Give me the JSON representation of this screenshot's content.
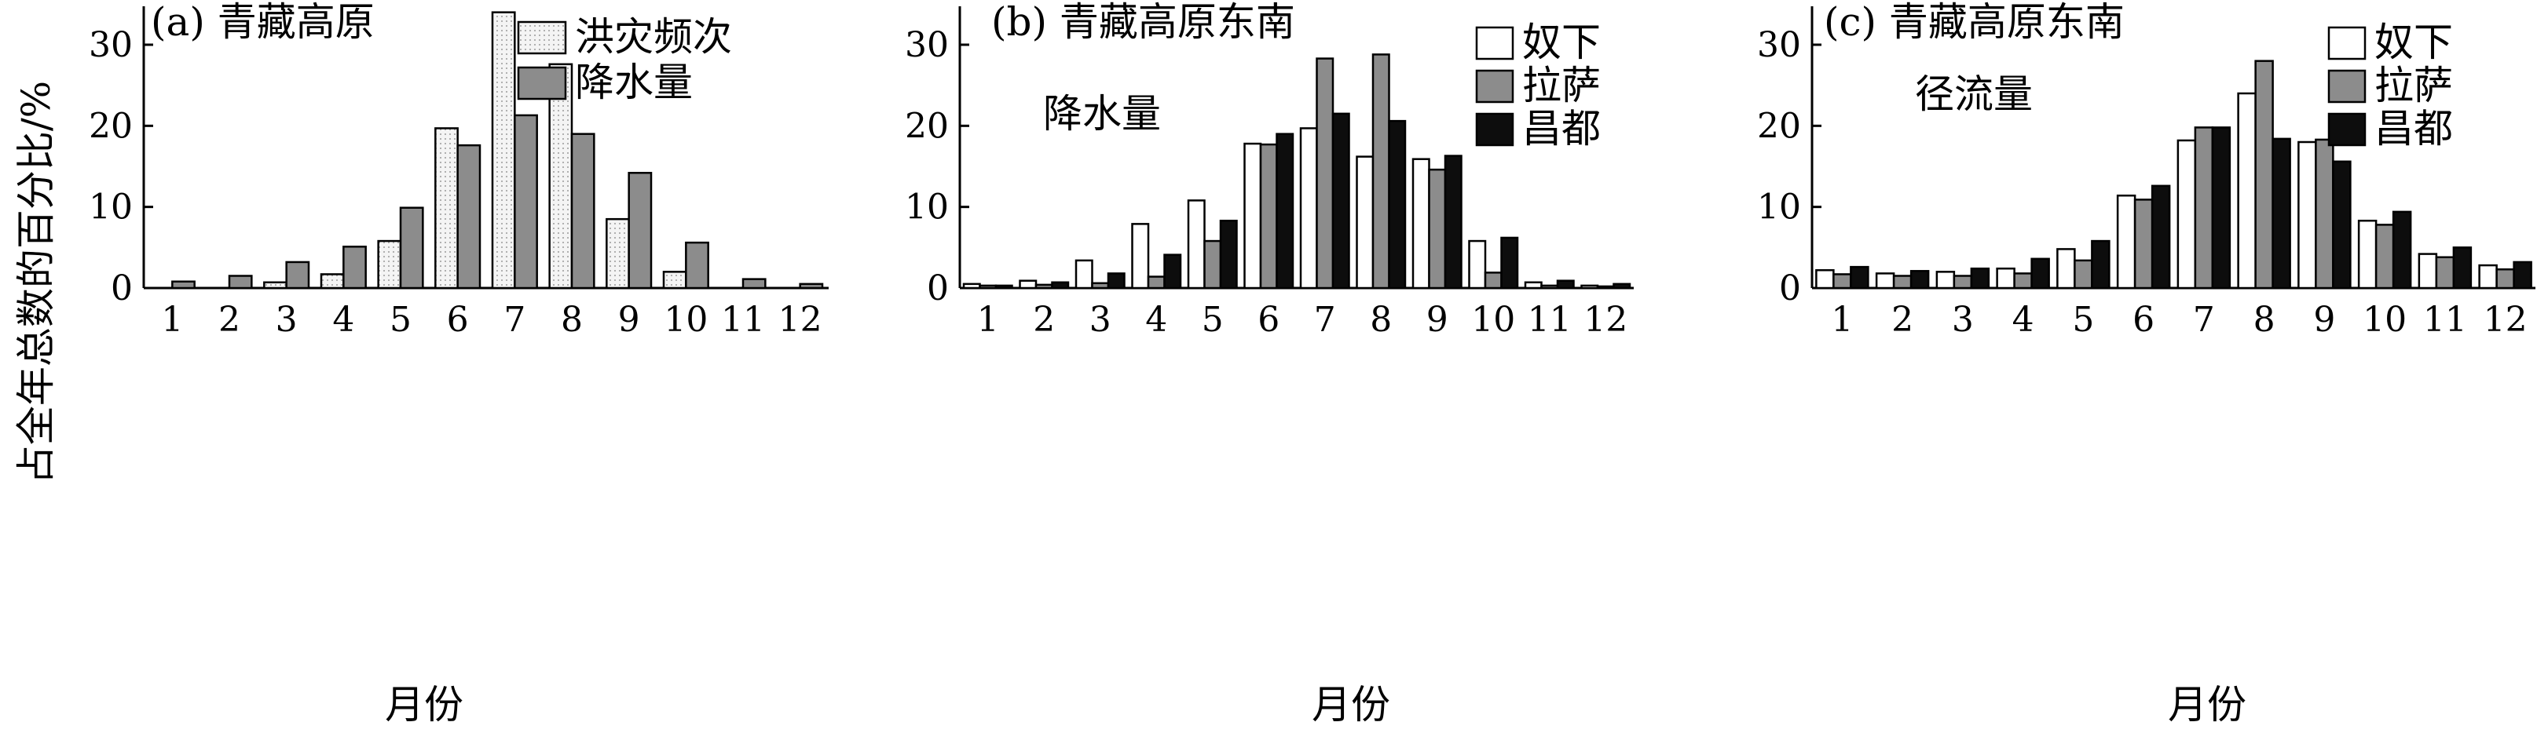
{
  "figure": {
    "ylabel": "占全年总数的百分比/%",
    "xlabel": "月份"
  },
  "colors": {
    "flood": "#f2f2f2",
    "precip_a": "#8c8c8c",
    "nuxia": "#ffffff",
    "lasa": "#8c8c8c",
    "changdu": "#0d0d0d"
  },
  "chart_data": [
    {
      "type": "bar",
      "title": "(a) 青藏高原",
      "subtitle": "",
      "categories": [
        "1",
        "2",
        "3",
        "4",
        "5",
        "6",
        "7",
        "8",
        "9",
        "10",
        "11",
        "12"
      ],
      "ylim": [
        0,
        35
      ],
      "yticks": [
        0,
        10,
        20,
        30
      ],
      "grid": false,
      "legend": "top-right",
      "series": [
        {
          "name": "洪灾频次",
          "color_key": "flood",
          "pattern": true,
          "values": [
            0,
            0,
            0.7,
            1.7,
            5.8,
            19.7,
            34,
            27.6,
            8.5,
            2.0,
            0,
            0
          ]
        },
        {
          "name": "降水量",
          "color_key": "precip_a",
          "pattern": false,
          "values": [
            0.8,
            1.5,
            3.2,
            5.1,
            9.9,
            17.6,
            21.3,
            19.0,
            14.2,
            5.6,
            1.1,
            0.5
          ]
        }
      ]
    },
    {
      "type": "bar",
      "title": "(b) 青藏高原东南",
      "subtitle": "降水量",
      "categories": [
        "1",
        "2",
        "3",
        "4",
        "5",
        "6",
        "7",
        "8",
        "9",
        "10",
        "11",
        "12"
      ],
      "ylim": [
        0,
        35
      ],
      "yticks": [
        0,
        10,
        20,
        30
      ],
      "grid": false,
      "legend": "top-right",
      "series": [
        {
          "name": "奴下",
          "color_key": "nuxia",
          "values": [
            0.5,
            0.9,
            3.4,
            7.9,
            10.8,
            17.8,
            19.7,
            16.2,
            15.9,
            5.8,
            0.7,
            0.3
          ]
        },
        {
          "name": "拉萨",
          "color_key": "lasa",
          "values": [
            0.3,
            0.4,
            0.6,
            1.4,
            5.8,
            17.7,
            28.3,
            28.8,
            14.6,
            1.9,
            0.3,
            0.2
          ]
        },
        {
          "name": "昌都",
          "color_key": "changdu",
          "values": [
            0.3,
            0.7,
            1.8,
            4.1,
            8.3,
            19.0,
            21.5,
            20.6,
            16.3,
            6.2,
            0.9,
            0.5
          ]
        }
      ]
    },
    {
      "type": "bar",
      "title": "(c) 青藏高原东南",
      "subtitle": "径流量",
      "categories": [
        "1",
        "2",
        "3",
        "4",
        "5",
        "6",
        "7",
        "8",
        "9",
        "10",
        "11",
        "12"
      ],
      "ylim": [
        0,
        35
      ],
      "yticks": [
        0,
        10,
        20,
        30
      ],
      "grid": false,
      "legend": "top-right",
      "series": [
        {
          "name": "奴下",
          "color_key": "nuxia",
          "values": [
            2.2,
            1.8,
            2.0,
            2.4,
            4.8,
            11.4,
            18.2,
            24.0,
            18.0,
            8.3,
            4.2,
            2.8
          ]
        },
        {
          "name": "拉萨",
          "color_key": "lasa",
          "values": [
            1.7,
            1.5,
            1.5,
            1.8,
            3.4,
            10.9,
            19.8,
            28.0,
            18.3,
            7.8,
            3.8,
            2.3
          ]
        },
        {
          "name": "昌都",
          "color_key": "changdu",
          "values": [
            2.6,
            2.1,
            2.4,
            3.6,
            5.8,
            12.6,
            19.8,
            18.4,
            15.6,
            9.4,
            5.0,
            3.2
          ]
        }
      ]
    }
  ]
}
